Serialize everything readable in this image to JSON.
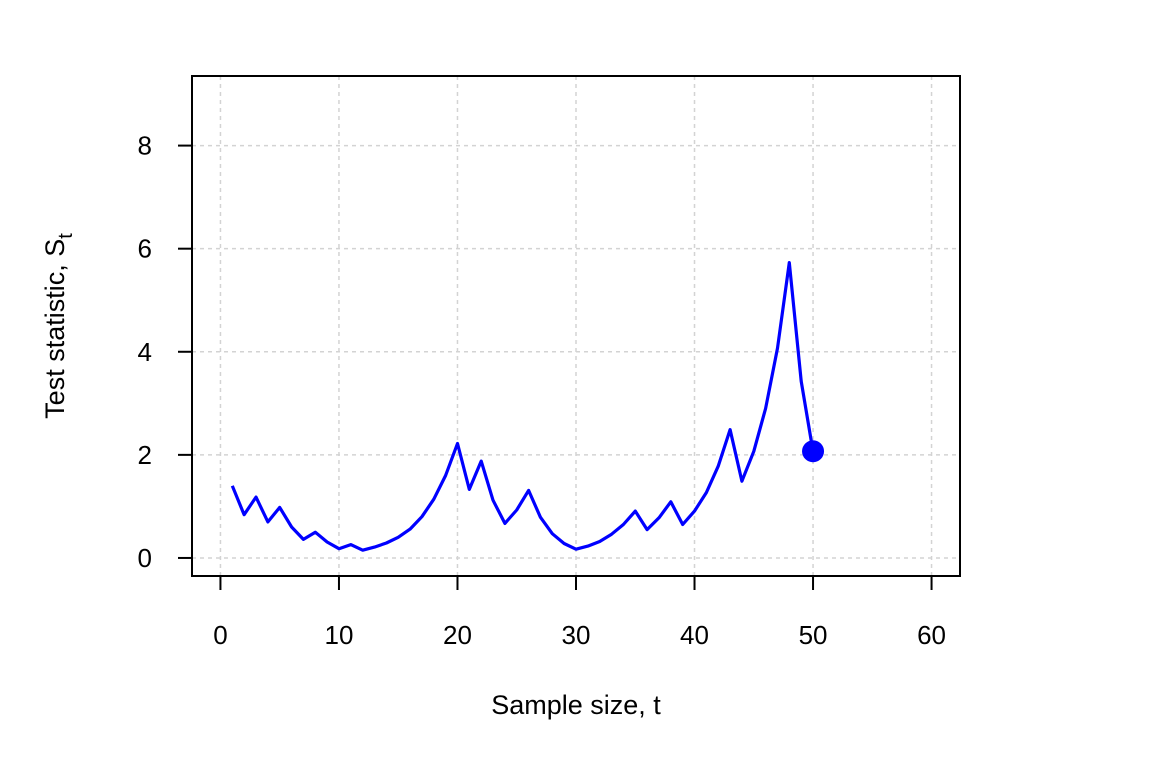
{
  "chart_data": {
    "type": "line",
    "title": "",
    "xlabel": "Sample size, t",
    "ylabel": "Test statistic, S",
    "ylabel_subscript": "t",
    "xlim": [
      -2.4,
      62.4
    ],
    "ylim": [
      -0.35,
      9.35
    ],
    "x_ticks": [
      0,
      10,
      20,
      30,
      40,
      50,
      60
    ],
    "y_ticks": [
      0,
      2,
      4,
      6,
      8
    ],
    "grid": true,
    "legend": "none",
    "colors": {
      "line": "#0000ff",
      "grid": "#d3d3d3",
      "axis": "#000000"
    },
    "series": [
      {
        "x": [
          1,
          2,
          3,
          4,
          5,
          6,
          7,
          8,
          9,
          10,
          11,
          12,
          13,
          14,
          15,
          16,
          17,
          18,
          19,
          20,
          21,
          22,
          23,
          24,
          25,
          26,
          27,
          28,
          29,
          30,
          31,
          32,
          33,
          34,
          35,
          36,
          37,
          38,
          39,
          40,
          41,
          42,
          43,
          44,
          45,
          46,
          47,
          48,
          49,
          50
        ],
        "values": [
          1.4,
          0.84,
          1.18,
          0.7,
          0.98,
          0.6,
          0.36,
          0.5,
          0.31,
          0.18,
          0.26,
          0.15,
          0.21,
          0.29,
          0.4,
          0.56,
          0.8,
          1.14,
          1.6,
          2.22,
          1.33,
          1.88,
          1.12,
          0.67,
          0.93,
          1.31,
          0.79,
          0.47,
          0.28,
          0.17,
          0.23,
          0.32,
          0.46,
          0.65,
          0.91,
          0.55,
          0.78,
          1.09,
          0.65,
          0.91,
          1.27,
          1.78,
          2.49,
          1.49,
          2.07,
          2.9,
          4.07,
          5.73,
          3.43,
          2.07
        ]
      }
    ],
    "end_point": {
      "x": 50,
      "y": 2.07
    }
  }
}
